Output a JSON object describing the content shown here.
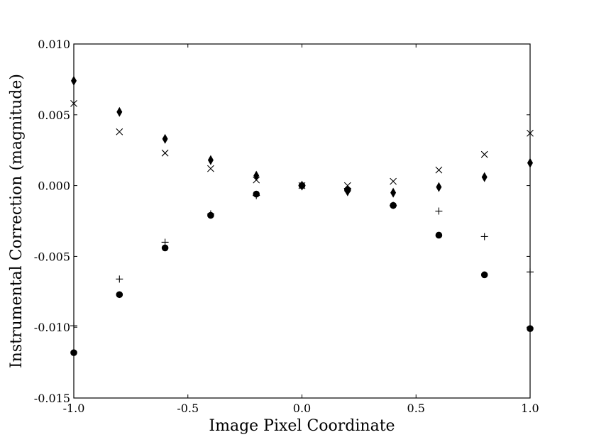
{
  "chart_data": {
    "type": "scatter",
    "title": "",
    "xlabel": "Image Pixel Coordinate",
    "ylabel": "Instrumental Correction (magnitude)",
    "xlim": [
      -1.0,
      1.0
    ],
    "ylim": [
      -0.015,
      0.01
    ],
    "grid": false,
    "x_ticks": [
      -1.0,
      -0.5,
      0.0,
      0.5,
      1.0
    ],
    "x_tick_labels": [
      "-1.0",
      "-0.5",
      "0.0",
      "0.5",
      "1.0"
    ],
    "y_ticks": [
      0.01,
      0.005,
      0.0,
      -0.005,
      -0.01,
      -0.015
    ],
    "y_tick_labels": [
      "0.010",
      "0.005",
      "0.000",
      "-0.005",
      "-0.010",
      "-0.015"
    ],
    "series": [
      {
        "marker": "diamond",
        "x": [
          -1.0,
          -0.8,
          -0.6,
          -0.4,
          -0.2,
          0.0,
          0.2,
          0.4,
          0.6,
          0.8,
          1.0
        ],
        "y": [
          0.0074,
          0.0052,
          0.0033,
          0.0018,
          0.0007,
          0.0,
          -0.0004,
          -0.0005,
          -0.0001,
          0.0006,
          0.0016
        ]
      },
      {
        "marker": "x",
        "x": [
          -1.0,
          -0.8,
          -0.6,
          -0.4,
          -0.2,
          0.0,
          0.2,
          0.4,
          0.6,
          0.8,
          1.0
        ],
        "y": [
          0.0058,
          0.0038,
          0.0023,
          0.0012,
          0.0004,
          0.0,
          0.0,
          0.0003,
          0.0011,
          0.0022,
          0.0037
        ]
      },
      {
        "marker": "plus",
        "x": [
          -1.0,
          -0.8,
          -0.6,
          -0.4,
          -0.2,
          0.0,
          0.2,
          0.4,
          0.6,
          0.8,
          1.0
        ],
        "y": [
          -0.0099,
          -0.0066,
          -0.004,
          -0.002,
          -0.0007,
          0.0,
          -0.0002,
          -0.0014,
          -0.0018,
          -0.0036,
          -0.0061
        ]
      },
      {
        "marker": "circle",
        "x": [
          -1.0,
          -0.8,
          -0.6,
          -0.4,
          -0.2,
          0.0,
          0.2,
          0.4,
          0.6,
          0.8,
          1.0
        ],
        "y": [
          -0.0118,
          -0.0077,
          -0.0044,
          -0.0021,
          -0.0006,
          0.0,
          -0.0003,
          -0.0014,
          -0.0035,
          -0.0063,
          -0.0101
        ]
      }
    ]
  }
}
